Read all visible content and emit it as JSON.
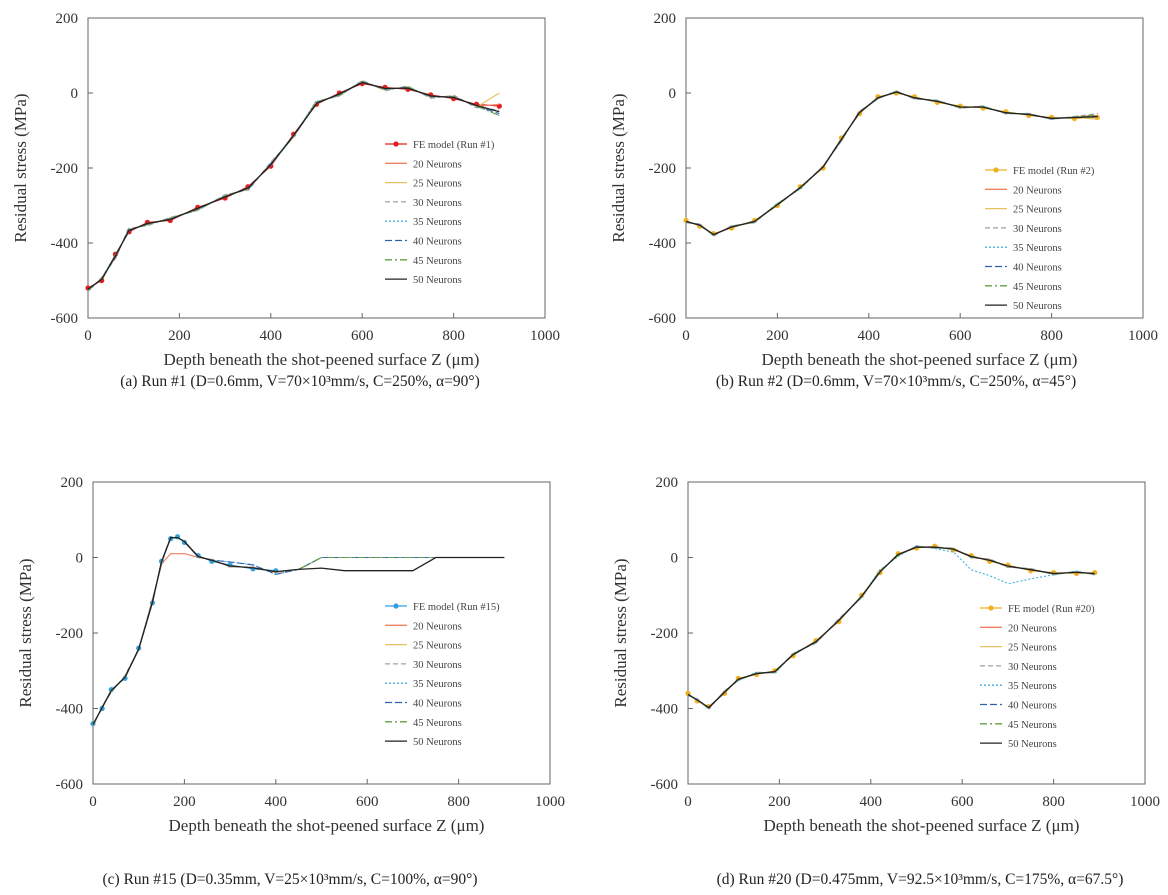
{
  "chart_data": [
    {
      "type": "line",
      "caption": "(a) Run #1 (D=0.6mm, V=70×10³mm/s, C=250%, α=90°)",
      "xlabel": "Depth beneath the shot-peened surface Z (μm)",
      "ylabel": "Residual stress (MPa)",
      "xlim": [
        0,
        1000
      ],
      "ylim": [
        -600,
        200
      ],
      "xticks": [
        "0",
        "200",
        "400",
        "600",
        "800",
        "1000"
      ],
      "yticks": [
        "200",
        "0",
        "-200",
        "-400",
        "-600"
      ],
      "legend_position": "right",
      "series": [
        {
          "name": "FE model (Run #1)",
          "color": "#e02020",
          "dash": "",
          "marker": true,
          "base": [
            [
              0,
              -520
            ],
            [
              30,
              -500
            ],
            [
              60,
              -430
            ],
            [
              90,
              -370
            ],
            [
              130,
              -345
            ],
            [
              180,
              -340
            ],
            [
              240,
              -305
            ],
            [
              300,
              -280
            ],
            [
              350,
              -250
            ],
            [
              400,
              -195
            ],
            [
              450,
              -110
            ],
            [
              500,
              -30
            ],
            [
              550,
              0
            ],
            [
              600,
              25
            ],
            [
              650,
              15
            ],
            [
              700,
              10
            ],
            [
              750,
              -5
            ],
            [
              800,
              -15
            ],
            [
              850,
              -30
            ],
            [
              900,
              -35
            ]
          ]
        },
        {
          "name": "20 Neurons",
          "color": "#f08060",
          "dash": "",
          "marker": false,
          "offset": [
            4,
            10
          ],
          "endpoint": -30
        },
        {
          "name": "25 Neurons",
          "color": "#e8c060",
          "dash": "",
          "marker": false,
          "offset": [
            -5,
            12
          ],
          "endpoint": 0
        },
        {
          "name": "30 Neurons",
          "color": "#a0a0a0",
          "dash": "5,3",
          "marker": false,
          "offset": [
            6,
            15
          ],
          "endpoint": -45
        },
        {
          "name": "35 Neurons",
          "color": "#40b0e0",
          "dash": "2,2",
          "marker": false,
          "offset": [
            -8,
            10
          ],
          "endpoint": -60
        },
        {
          "name": "40 Neurons",
          "color": "#3060b0",
          "dash": "7,3",
          "marker": false,
          "offset": [
            5,
            8
          ],
          "endpoint": -55
        },
        {
          "name": "45 Neurons",
          "color": "#60a040",
          "dash": "7,3,2,3",
          "marker": false,
          "offset": [
            -4,
            8
          ],
          "endpoint": -60
        },
        {
          "name": "50 Neurons",
          "color": "#222222",
          "dash": "",
          "marker": false,
          "offset": [
            2,
            5
          ],
          "endpoint": -50
        }
      ]
    },
    {
      "type": "line",
      "caption": "(b) Run #2 (D=0.6mm, V=70×10³mm/s, C=250%, α=45°)",
      "xlabel": "Depth beneath the shot-peened surface Z (μm)",
      "ylabel": "Residual stress (MPa)",
      "xlim": [
        0,
        1000
      ],
      "ylim": [
        -600,
        200
      ],
      "xticks": [
        "0",
        "200",
        "400",
        "600",
        "800",
        "1000"
      ],
      "yticks": [
        "200",
        "0",
        "-200",
        "-400",
        "-600"
      ],
      "legend_position": "right",
      "series": [
        {
          "name": "FE model (Run #2)",
          "color": "#f0b020",
          "dash": "",
          "marker": true,
          "base": [
            [
              0,
              -340
            ],
            [
              30,
              -355
            ],
            [
              60,
              -375
            ],
            [
              100,
              -360
            ],
            [
              150,
              -340
            ],
            [
              200,
              -300
            ],
            [
              250,
              -250
            ],
            [
              300,
              -200
            ],
            [
              340,
              -120
            ],
            [
              380,
              -55
            ],
            [
              420,
              -10
            ],
            [
              460,
              0
            ],
            [
              500,
              -10
            ],
            [
              550,
              -25
            ],
            [
              600,
              -35
            ],
            [
              650,
              -40
            ],
            [
              700,
              -50
            ],
            [
              750,
              -60
            ],
            [
              800,
              -65
            ],
            [
              850,
              -68
            ],
            [
              900,
              -65
            ]
          ]
        },
        {
          "name": "20 Neurons",
          "color": "#f08060",
          "dash": "",
          "marker": false,
          "offset": [
            4,
            8
          ],
          "endpoint": -60
        },
        {
          "name": "25 Neurons",
          "color": "#e8c060",
          "dash": "",
          "marker": false,
          "offset": [
            -4,
            6
          ],
          "endpoint": -70
        },
        {
          "name": "30 Neurons",
          "color": "#a0a0a0",
          "dash": "5,3",
          "marker": false,
          "offset": [
            5,
            10
          ],
          "endpoint": -55
        },
        {
          "name": "35 Neurons",
          "color": "#40b0e0",
          "dash": "2,2",
          "marker": false,
          "offset": [
            -5,
            8
          ],
          "endpoint": -65
        },
        {
          "name": "40 Neurons",
          "color": "#3060b0",
          "dash": "7,3",
          "marker": false,
          "offset": [
            3,
            6
          ],
          "endpoint": -62
        },
        {
          "name": "45 Neurons",
          "color": "#60a040",
          "dash": "7,3,2,3",
          "marker": false,
          "offset": [
            -3,
            6
          ],
          "endpoint": -58
        },
        {
          "name": "50 Neurons",
          "color": "#222222",
          "dash": "",
          "marker": false,
          "offset": [
            2,
            4
          ],
          "endpoint": -63
        }
      ]
    },
    {
      "type": "line",
      "caption": "(c) Run #15 (D=0.35mm, V=25×10³mm/s, C=100%, α=90°)",
      "xlabel": "Depth beneath the shot-peened surface Z (μm)",
      "ylabel": "Residual stress (MPa)",
      "xlim": [
        0,
        1000
      ],
      "ylim": [
        -600,
        200
      ],
      "xticks": [
        "0",
        "200",
        "400",
        "600",
        "800",
        "1000"
      ],
      "yticks": [
        "200",
        "0",
        "-200",
        "-400",
        "-600"
      ],
      "legend_position": "right",
      "series": [
        {
          "name": "FE model (Run #15)",
          "color": "#30a0e0",
          "dash": "",
          "marker": true,
          "base": [
            [
              0,
              -440
            ],
            [
              20,
              -400
            ],
            [
              40,
              -350
            ],
            [
              70,
              -320
            ],
            [
              100,
              -240
            ],
            [
              130,
              -120
            ],
            [
              150,
              -10
            ],
            [
              170,
              50
            ],
            [
              185,
              55
            ],
            [
              200,
              40
            ],
            [
              230,
              5
            ],
            [
              260,
              -10
            ],
            [
              300,
              -20
            ],
            [
              350,
              -30
            ],
            [
              400,
              -35
            ]
          ]
        },
        {
          "name": "20 Neurons",
          "color": "#f08060",
          "dash": "",
          "marker": false,
          "offset": [
            -4,
            8
          ],
          "endpoint": 0,
          "mod": "flatpeak"
        },
        {
          "name": "25 Neurons",
          "color": "#e8c060",
          "dash": "",
          "marker": false,
          "offset": [
            3,
            6
          ],
          "endpoint": 0
        },
        {
          "name": "30 Neurons",
          "color": "#a0a0a0",
          "dash": "5,3",
          "marker": false,
          "offset": [
            5,
            8
          ],
          "endpoint": 0
        },
        {
          "name": "35 Neurons",
          "color": "#40b0e0",
          "dash": "2,2",
          "marker": false,
          "offset": [
            -3,
            6
          ],
          "endpoint": 0,
          "mod": "wavy"
        },
        {
          "name": "40 Neurons",
          "color": "#3060b0",
          "dash": "7,3",
          "marker": false,
          "offset": [
            2,
            5
          ],
          "endpoint": 0,
          "mod": "wavy"
        },
        {
          "name": "45 Neurons",
          "color": "#60a040",
          "dash": "7,3,2,3",
          "marker": false,
          "offset": [
            -2,
            5
          ],
          "endpoint": 0
        },
        {
          "name": "50 Neurons",
          "color": "#222222",
          "dash": "",
          "marker": false,
          "offset": [
            1,
            4
          ],
          "endpoint": 0,
          "mod": "dip"
        }
      ]
    },
    {
      "type": "line",
      "caption": "(d) Run #20 (D=0.475mm, V=92.5×10³mm/s, C=175%, α=67.5°)",
      "xlabel": "Depth beneath the shot-peened surface Z (μm)",
      "ylabel": "Residual stress (MPa)",
      "xlim": [
        0,
        1000
      ],
      "ylim": [
        -600,
        200
      ],
      "xticks": [
        "0",
        "200",
        "400",
        "600",
        "800",
        "1000"
      ],
      "yticks": [
        "200",
        "0",
        "-200",
        "-400",
        "-600"
      ],
      "legend_position": "right",
      "series": [
        {
          "name": "FE model (Run #20)",
          "color": "#f0b020",
          "dash": "",
          "marker": true,
          "base": [
            [
              0,
              -360
            ],
            [
              20,
              -380
            ],
            [
              45,
              -395
            ],
            [
              80,
              -360
            ],
            [
              110,
              -320
            ],
            [
              150,
              -310
            ],
            [
              190,
              -300
            ],
            [
              230,
              -260
            ],
            [
              280,
              -220
            ],
            [
              330,
              -170
            ],
            [
              380,
              -100
            ],
            [
              420,
              -40
            ],
            [
              460,
              10
            ],
            [
              500,
              25
            ],
            [
              540,
              30
            ],
            [
              580,
              20
            ],
            [
              620,
              5
            ],
            [
              660,
              -10
            ],
            [
              700,
              -20
            ],
            [
              750,
              -35
            ],
            [
              800,
              -40
            ],
            [
              850,
              -42
            ],
            [
              890,
              -40
            ]
          ]
        },
        {
          "name": "20 Neurons",
          "color": "#f08060",
          "dash": "",
          "marker": false,
          "offset": [
            4,
            8
          ],
          "endpoint": -42
        },
        {
          "name": "25 Neurons",
          "color": "#e8c060",
          "dash": "",
          "marker": false,
          "offset": [
            -4,
            8
          ],
          "endpoint": -45
        },
        {
          "name": "30 Neurons",
          "color": "#a0a0a0",
          "dash": "5,3",
          "marker": false,
          "offset": [
            5,
            10
          ],
          "endpoint": -40
        },
        {
          "name": "35 Neurons",
          "color": "#40b0e0",
          "dash": "2,2",
          "marker": false,
          "offset": [
            -5,
            10
          ],
          "endpoint": -40,
          "mod": "bump"
        },
        {
          "name": "40 Neurons",
          "color": "#3060b0",
          "dash": "7,3",
          "marker": false,
          "offset": [
            3,
            6
          ],
          "endpoint": -44
        },
        {
          "name": "45 Neurons",
          "color": "#60a040",
          "dash": "7,3,2,3",
          "marker": false,
          "offset": [
            -3,
            6
          ],
          "endpoint": -40
        },
        {
          "name": "50 Neurons",
          "color": "#222222",
          "dash": "",
          "marker": false,
          "offset": [
            2,
            4
          ],
          "endpoint": -42
        }
      ]
    }
  ]
}
